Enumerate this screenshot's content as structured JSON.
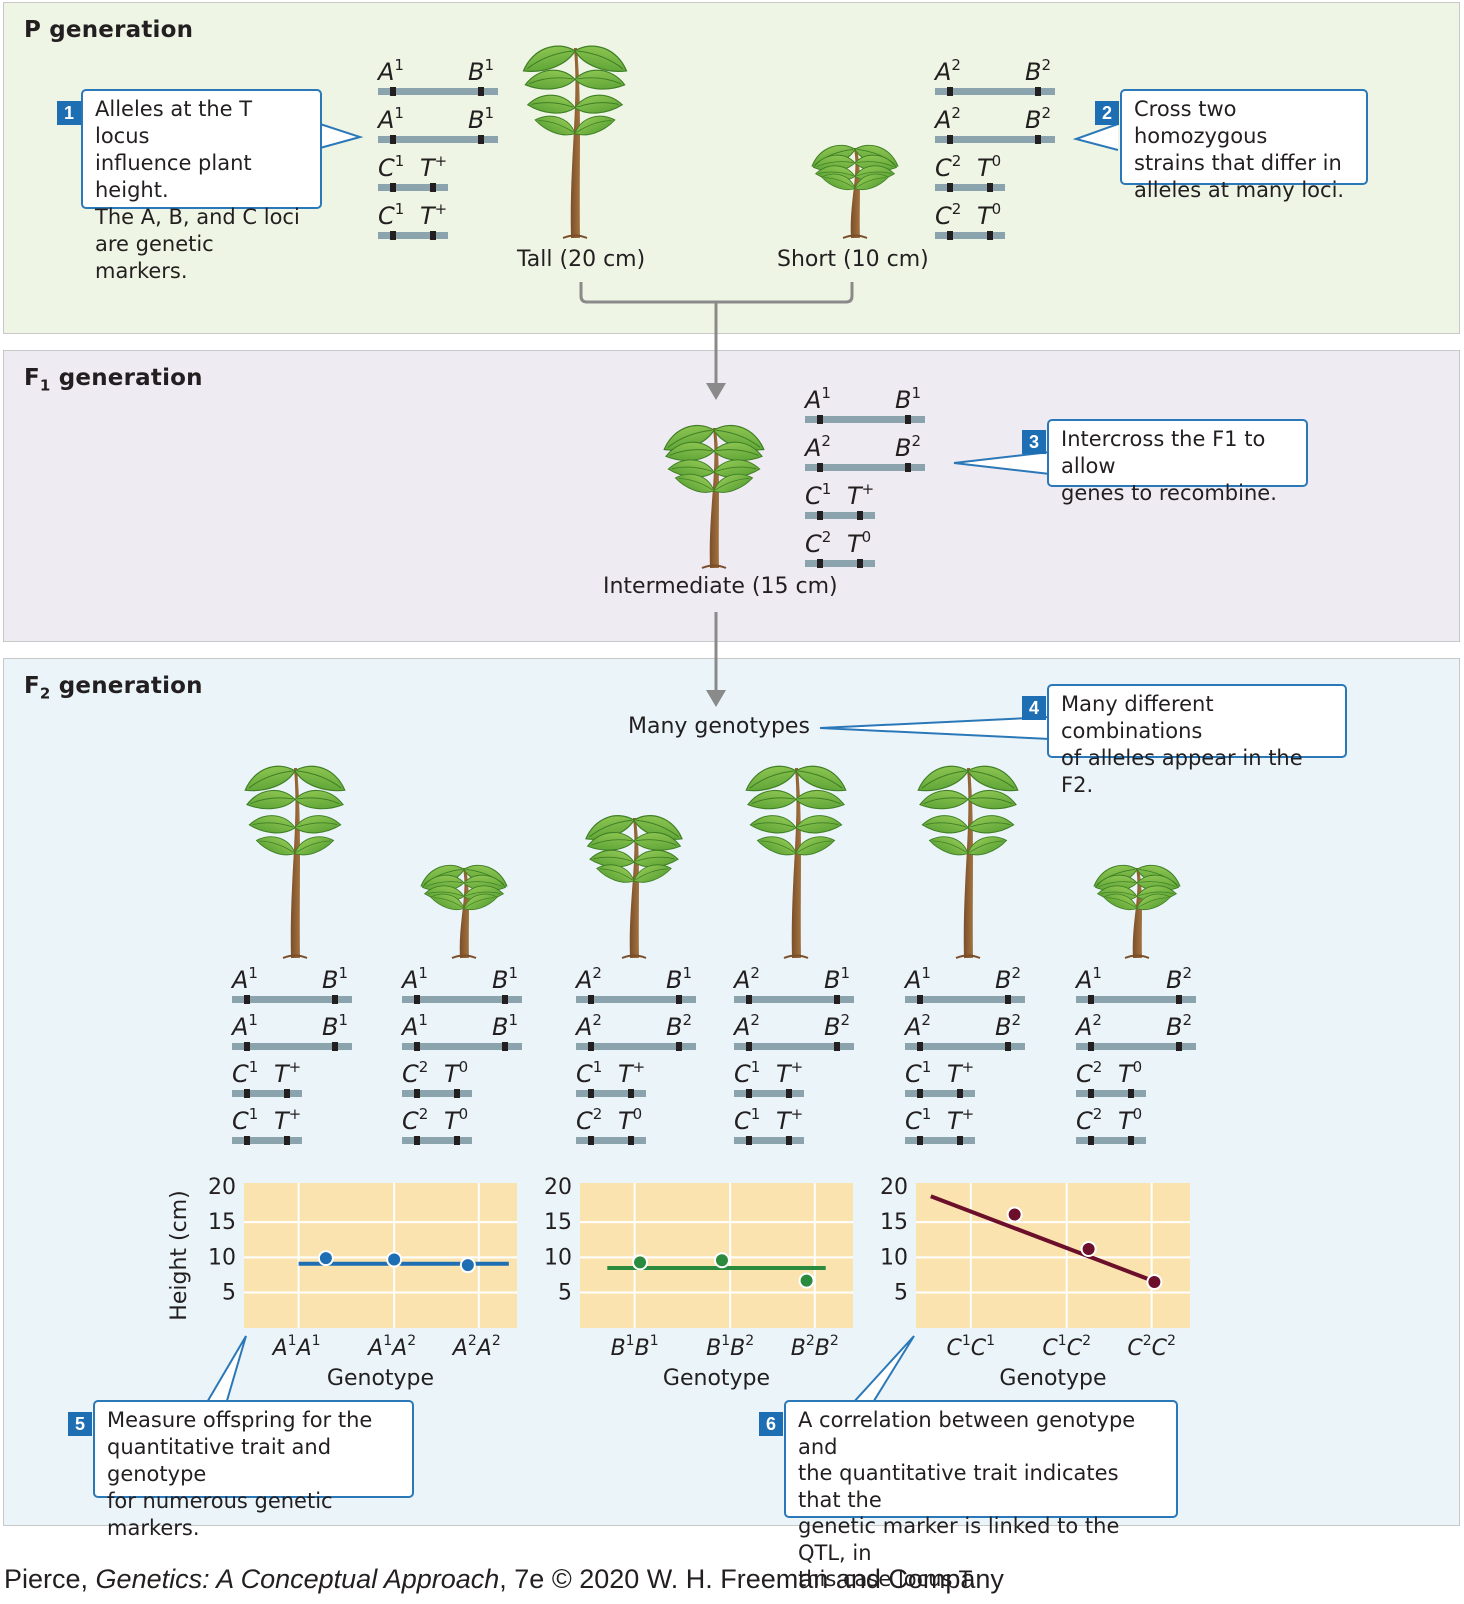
{
  "panels": {
    "p": {
      "title": "P generation",
      "bg": "#eef5e4"
    },
    "f1": {
      "title_main": "F",
      "title_sub": "1",
      "title_rest": " generation",
      "bg": "#efebf2"
    },
    "f2": {
      "title_main": "F",
      "title_sub": "2",
      "title_rest": " generation",
      "bg": "#eaf4f9"
    }
  },
  "callouts": [
    {
      "num": "1",
      "lines": [
        "Alleles at the T locus",
        "influence plant height.",
        "The A, B, and C loci",
        "are genetic markers."
      ]
    },
    {
      "num": "2",
      "lines": [
        "Cross two homozygous",
        "strains that differ in",
        "alleles at many loci."
      ]
    },
    {
      "num": "3",
      "lines": [
        "Intercross the F1 to allow",
        "genes to recombine."
      ]
    },
    {
      "num": "4",
      "lines": [
        "Many different combinations",
        "of alleles appear in the F2."
      ]
    },
    {
      "num": "5",
      "lines": [
        "Measure offspring for the",
        "quantitative trait and genotype",
        "for numerous genetic markers."
      ]
    },
    {
      "num": "6",
      "lines": [
        "A correlation between genotype and",
        "the quantitative trait indicates that the",
        "genetic marker is linked to the QTL, in",
        "this case locus T."
      ]
    }
  ],
  "labels": {
    "tall": "Tall (20 cm)",
    "short": "Short (10 cm)",
    "intermediate": "Intermediate (15 cm)",
    "many_genotypes": "Many genotypes"
  },
  "genotypes": {
    "p_tall": [
      [
        "A1",
        "B1"
      ],
      [
        "A1",
        "B1"
      ],
      [
        "C1",
        "T+"
      ],
      [
        "C1",
        "T+"
      ]
    ],
    "p_short": [
      [
        "A2",
        "B2"
      ],
      [
        "A2",
        "B2"
      ],
      [
        "C2",
        "T0"
      ],
      [
        "C2",
        "T0"
      ]
    ],
    "f1": [
      [
        "A1",
        "B1"
      ],
      [
        "A2",
        "B2"
      ],
      [
        "C1",
        "T+"
      ],
      [
        "C2",
        "T0"
      ]
    ],
    "f2": [
      [
        [
          "A1",
          "B1"
        ],
        [
          "A1",
          "B1"
        ],
        [
          "C1",
          "T+"
        ],
        [
          "C1",
          "T+"
        ]
      ],
      [
        [
          "A1",
          "B1"
        ],
        [
          "A1",
          "B1"
        ],
        [
          "C2",
          "T0"
        ],
        [
          "C2",
          "T0"
        ]
      ],
      [
        [
          "A2",
          "B1"
        ],
        [
          "A2",
          "B2"
        ],
        [
          "C1",
          "T+"
        ],
        [
          "C2",
          "T0"
        ]
      ],
      [
        [
          "A2",
          "B1"
        ],
        [
          "A2",
          "B2"
        ],
        [
          "C1",
          "T+"
        ],
        [
          "C1",
          "T+"
        ]
      ],
      [
        [
          "A1",
          "B2"
        ],
        [
          "A2",
          "B2"
        ],
        [
          "C1",
          "T+"
        ],
        [
          "C1",
          "T+"
        ]
      ],
      [
        [
          "A1",
          "B2"
        ],
        [
          "A2",
          "B2"
        ],
        [
          "C2",
          "T0"
        ],
        [
          "C2",
          "T0"
        ]
      ]
    ]
  },
  "chart_data": [
    {
      "type": "line",
      "categories": [
        "A1A1",
        "A1A2",
        "A2A2"
      ],
      "values": [
        9.6,
        9.4,
        8.6
      ],
      "fit": [
        8.8,
        8.8
      ],
      "ylim": [
        0,
        20
      ],
      "yticks": [
        5,
        10,
        15,
        20
      ],
      "ylabel": "Height (cm)",
      "xlabel": "Genotype",
      "color": "#1e6eb3"
    },
    {
      "type": "line",
      "categories": [
        "B1B1",
        "B1B2",
        "B2B2"
      ],
      "values": [
        9.0,
        9.3,
        6.4
      ],
      "fit": [
        8.2,
        8.2
      ],
      "ylim": [
        0,
        20
      ],
      "yticks": [
        5,
        10,
        15,
        20
      ],
      "ylabel": "",
      "xlabel": "Genotype",
      "color": "#2a8a3e"
    },
    {
      "type": "line",
      "categories": [
        "C1C1",
        "C1C2",
        "C2C2"
      ],
      "values": [
        15.8,
        10.9,
        6.2
      ],
      "fit": [
        18.4,
        5.9
      ],
      "ylim": [
        0,
        20
      ],
      "yticks": [
        5,
        10,
        15,
        20
      ],
      "ylabel": "",
      "xlabel": "Genotype",
      "color": "#6b0f2b"
    }
  ],
  "footer": {
    "pre": "Pierce, ",
    "italic": "Genetics: A Conceptual Approach",
    "post": ", 7e © 2020 W. H. Freeman and Company"
  }
}
